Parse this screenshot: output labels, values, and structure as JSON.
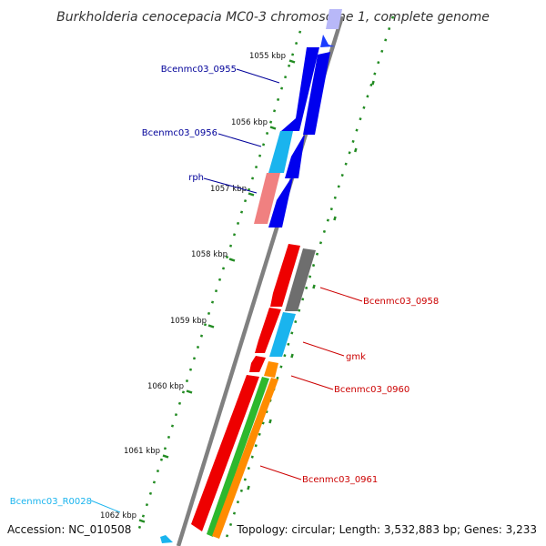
{
  "title": "Burkholderia cenocepacia MC0-3 chromosome 1, complete genome",
  "footer": {
    "accession": "Accession: NC_010508",
    "topology": "Topology: circular; Length: 3,532,883 bp; Genes: 3,233"
  },
  "colors": {
    "blue": "#0000ee",
    "light_blue": "#1ab4ee",
    "pink": "#f08080",
    "red": "#ee0000",
    "gray": "#6e6e6e",
    "orange": "#ff8c00",
    "green": "#2db82d",
    "tick_green": "#228b22",
    "backbone": "#808080"
  },
  "ticks": [
    {
      "label": "1055 kbp"
    },
    {
      "label": "1056 kbp"
    },
    {
      "label": "1057 kbp"
    },
    {
      "label": "1058 kbp"
    },
    {
      "label": "1059 kbp"
    },
    {
      "label": "1060 kbp"
    },
    {
      "label": "1061 kbp"
    },
    {
      "label": "1062 kbp"
    }
  ],
  "gene_labels": [
    {
      "name": "Bcenmc03_0955",
      "color": "#000099"
    },
    {
      "name": "Bcenmc03_0956",
      "color": "#000099"
    },
    {
      "name": "rph",
      "color": "#000099"
    },
    {
      "name": "Bcenmc03_0958",
      "color": "#cc0000"
    },
    {
      "name": "gmk",
      "color": "#cc0000"
    },
    {
      "name": "Bcenmc03_0960",
      "color": "#cc0000"
    },
    {
      "name": "Bcenmc03_0961",
      "color": "#cc0000"
    },
    {
      "name": "Bcenmc03_R0028",
      "color": "#1ab4ee"
    }
  ]
}
